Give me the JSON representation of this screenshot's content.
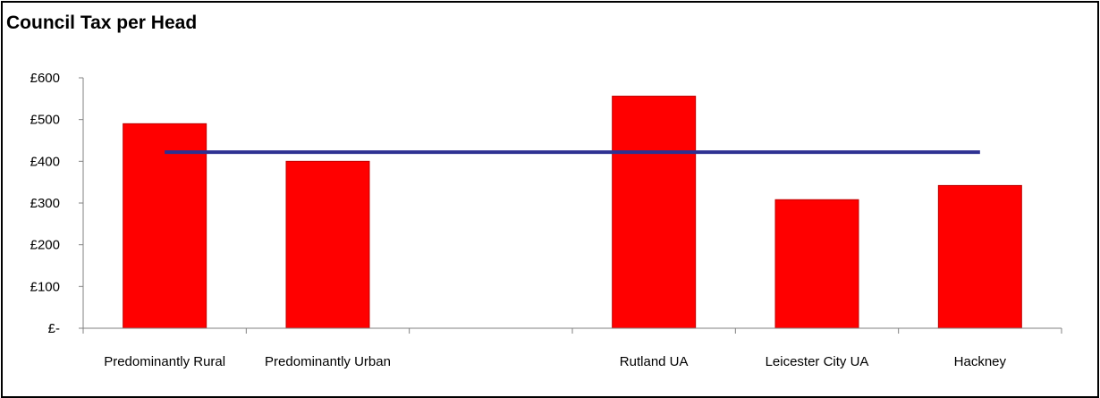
{
  "chart_data": {
    "type": "bar",
    "title": "Council Tax per Head",
    "categories": [
      "Predominantly Rural",
      "Predominantly Urban",
      "",
      "Rutland UA",
      "Leicester City UA",
      "Hackney"
    ],
    "values": [
      490,
      400,
      null,
      556,
      308,
      342
    ],
    "reference_line": 422,
    "ylim": [
      0,
      600
    ],
    "yticks": [
      {
        "value": 0,
        "label": "£-"
      },
      {
        "value": 100,
        "label": "£100"
      },
      {
        "value": 200,
        "label": "£200"
      },
      {
        "value": 300,
        "label": "£300"
      },
      {
        "value": 400,
        "label": "£400"
      },
      {
        "value": 500,
        "label": "£500"
      },
      {
        "value": 600,
        "label": "£600"
      }
    ],
    "xlabel": "",
    "ylabel": "",
    "grid": false,
    "colors": {
      "bar": "#ff0000",
      "bar_border": "#c00000",
      "line": "#2e3192",
      "axis": "#808080"
    }
  }
}
